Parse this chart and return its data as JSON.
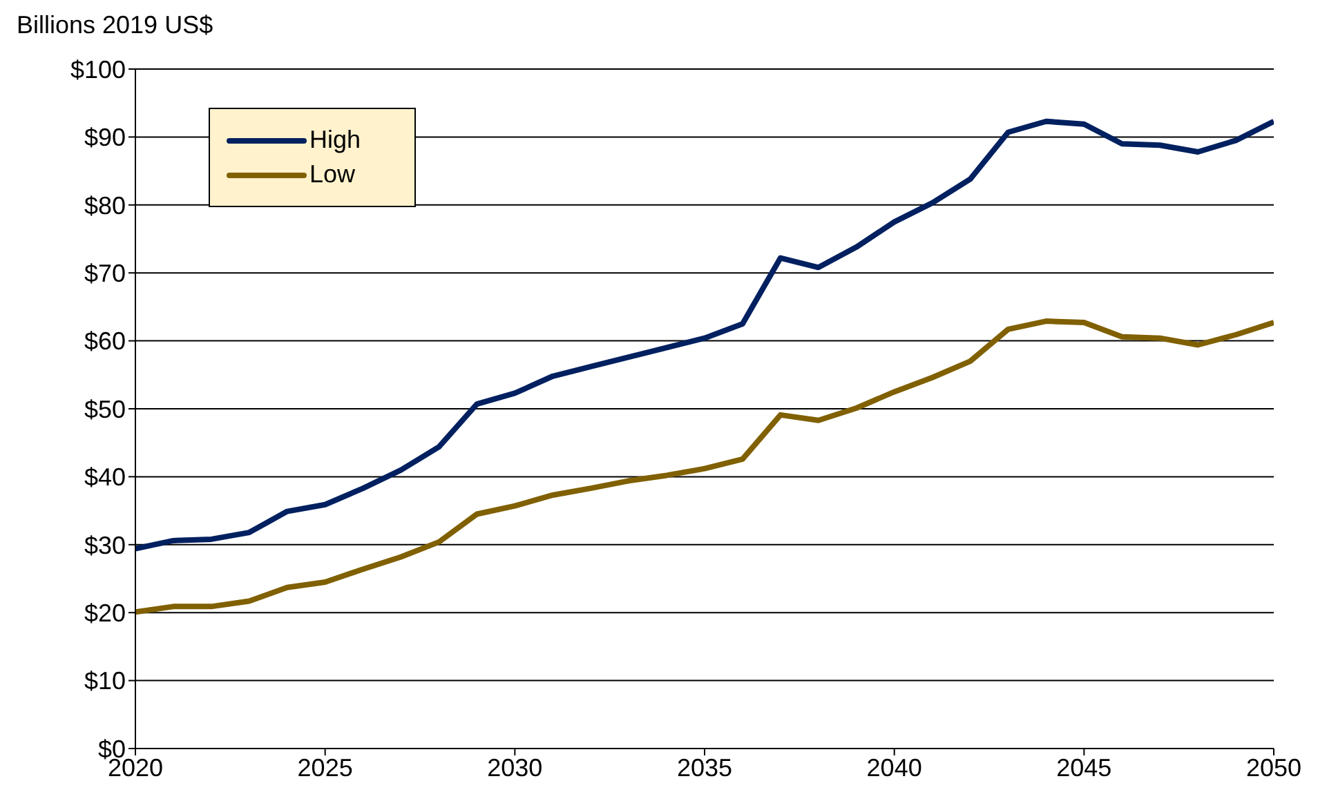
{
  "chart_data": {
    "type": "line",
    "ylabel": "Billions 2019 US$",
    "x": [
      2020,
      2021,
      2022,
      2023,
      2024,
      2025,
      2026,
      2027,
      2028,
      2029,
      2030,
      2031,
      2032,
      2033,
      2034,
      2035,
      2036,
      2037,
      2038,
      2039,
      2040,
      2041,
      2042,
      2043,
      2044,
      2045,
      2046,
      2047,
      2048,
      2049,
      2050
    ],
    "series": [
      {
        "name": "High",
        "color": "#002060",
        "values": [
          29.4,
          30.6,
          30.8,
          31.8,
          34.9,
          35.9,
          38.3,
          41,
          44.4,
          50.7,
          52.3,
          54.8,
          56.2,
          57.6,
          59,
          60.4,
          62.5,
          72.2,
          70.8,
          73.8,
          77.5,
          80.3,
          83.8,
          90.7,
          92.3,
          91.9,
          89,
          88.8,
          87.8,
          89.5,
          92.3
        ]
      },
      {
        "name": "Low",
        "color": "#806000",
        "values": [
          20.1,
          20.9,
          20.9,
          21.7,
          23.7,
          24.5,
          26.4,
          28.2,
          30.4,
          34.5,
          35.7,
          37.3,
          38.3,
          39.4,
          40.2,
          41.2,
          42.6,
          49.1,
          48.3,
          50.1,
          52.5,
          54.6,
          57,
          61.7,
          62.9,
          62.7,
          60.6,
          60.4,
          59.4,
          60.9,
          62.7
        ]
      }
    ],
    "xlim": [
      2020,
      2050
    ],
    "xticks": [
      2020,
      2025,
      2030,
      2035,
      2040,
      2045,
      2050
    ],
    "ylim": [
      0,
      100
    ],
    "yticks": [
      {
        "value": 0,
        "label": "$0"
      },
      {
        "value": 10,
        "label": "$10"
      },
      {
        "value": 20,
        "label": "$20"
      },
      {
        "value": 30,
        "label": "$30"
      },
      {
        "value": 40,
        "label": "$40"
      },
      {
        "value": 50,
        "label": "$50"
      },
      {
        "value": 60,
        "label": "$60"
      },
      {
        "value": 70,
        "label": "$70"
      },
      {
        "value": 80,
        "label": "$80"
      },
      {
        "value": 90,
        "label": "$90"
      },
      {
        "value": 100,
        "label": "$100"
      }
    ],
    "grid": "y",
    "legend": "top left",
    "marker": "none",
    "line_style": "solid"
  }
}
